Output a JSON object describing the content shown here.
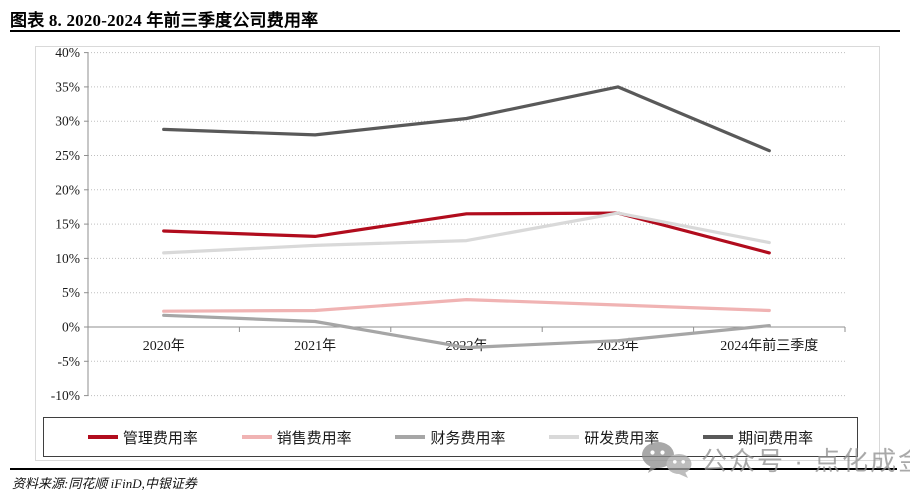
{
  "title": "图表 8. 2020-2024 年前三季度公司费用率",
  "source_note": "资料来源:同花顺 iFinD,中银证券",
  "watermark": {
    "icon": "wechat-icon",
    "text": "公众号 · 点化成金"
  },
  "colors": {
    "management_red": "#b10c1d",
    "sales_pink": "#f0b3b3",
    "finance_gray": "#a6a6a6",
    "rd_light_gray": "#d9d9d9",
    "period_dark_gray": "#595959",
    "gridline": "#bfbfbf",
    "axis": "#8f8f8f"
  },
  "chart_data": {
    "type": "line",
    "title": "2020-2024 年前三季度公司费用率",
    "categories": [
      "2020年",
      "2021年",
      "2022年",
      "2023年",
      "2024年前三季度"
    ],
    "series": [
      {
        "name": "管理费用率",
        "color": "#b10c1d",
        "values": [
          14.0,
          13.2,
          16.5,
          16.6,
          10.8
        ]
      },
      {
        "name": "销售费用率",
        "color": "#f0b3b3",
        "values": [
          2.3,
          2.4,
          4.0,
          3.2,
          2.4
        ]
      },
      {
        "name": "财务费用率",
        "color": "#a6a6a6",
        "values": [
          1.7,
          0.8,
          -3.0,
          -2.0,
          0.2
        ]
      },
      {
        "name": "研发费用率",
        "color": "#d9d9d9",
        "values": [
          10.8,
          11.9,
          12.6,
          16.6,
          12.3
        ]
      },
      {
        "name": "期间费用率",
        "color": "#595959",
        "values": [
          28.8,
          28.0,
          30.4,
          35.0,
          25.7
        ]
      }
    ],
    "ylim": [
      -10,
      40
    ],
    "ytick_step": 5,
    "ytick_labels": [
      "40%",
      "35%",
      "30%",
      "25%",
      "20%",
      "15%",
      "10%",
      "5%",
      "0%",
      "-5%",
      "-10%"
    ],
    "grid": "horizontal-dotted",
    "legend_position": "bottom-box"
  }
}
